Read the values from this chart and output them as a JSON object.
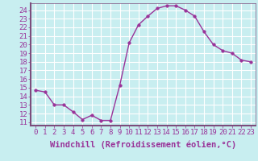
{
  "x": [
    0,
    1,
    2,
    3,
    4,
    5,
    6,
    7,
    8,
    9,
    10,
    11,
    12,
    13,
    14,
    15,
    16,
    17,
    18,
    19,
    20,
    21,
    22,
    23
  ],
  "y": [
    14.7,
    14.5,
    13.0,
    13.0,
    12.2,
    11.3,
    11.8,
    11.2,
    11.2,
    15.3,
    20.2,
    22.3,
    23.3,
    24.2,
    24.5,
    24.5,
    24.0,
    23.3,
    21.5,
    20.0,
    19.3,
    19.0,
    18.2,
    18.0
  ],
  "line_color": "#993399",
  "marker": "o",
  "markersize": 2.5,
  "linewidth": 1.0,
  "bg_color": "#c8eef0",
  "grid_color": "#ffffff",
  "xlabel": "Windchill (Refroidissement éolien,°C)",
  "xlabel_fontsize": 7.5,
  "ylabel_ticks": [
    11,
    12,
    13,
    14,
    15,
    16,
    17,
    18,
    19,
    20,
    21,
    22,
    23,
    24
  ],
  "ylim": [
    10.6,
    24.8
  ],
  "xlim": [
    -0.5,
    23.5
  ],
  "xtick_labels": [
    "0",
    "1",
    "2",
    "3",
    "4",
    "5",
    "6",
    "7",
    "8",
    "9",
    "10",
    "11",
    "12",
    "13",
    "14",
    "15",
    "16",
    "17",
    "18",
    "19",
    "20",
    "21",
    "22",
    "23"
  ],
  "tick_fontsize": 6.5,
  "tick_color": "#993399",
  "label_color": "#993399",
  "spine_color": "#7c4d7c"
}
